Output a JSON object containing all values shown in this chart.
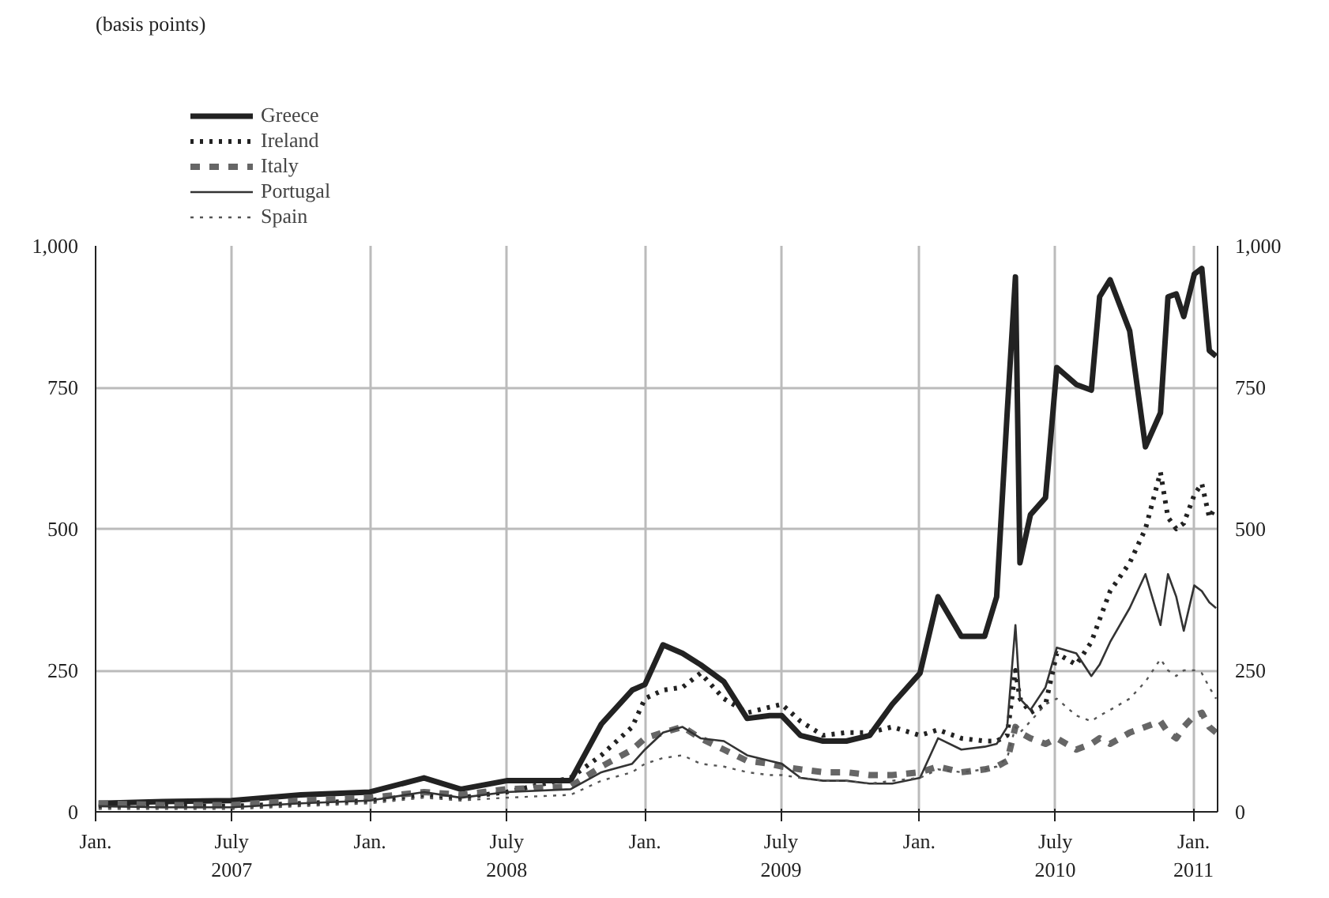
{
  "chart_data": {
    "type": "line",
    "annotations": [
      "(basis points)"
    ],
    "x": [
      "2007-01-05",
      "2007-04-01",
      "2007-07-01",
      "2007-10-01",
      "2008-01-01",
      "2008-03-13",
      "2008-05-01",
      "2008-07-01",
      "2008-09-24",
      "2008-11-04",
      "2008-12-15",
      "2009-01-01",
      "2009-01-25",
      "2009-02-20",
      "2009-03-16",
      "2009-04-16",
      "2009-05-17",
      "2009-06-16",
      "2009-07-02",
      "2009-07-27",
      "2009-08-26",
      "2009-09-26",
      "2009-10-27",
      "2009-11-26",
      "2010-01-02",
      "2010-01-26",
      "2010-02-26",
      "2010-03-29",
      "2010-04-14",
      "2010-04-28",
      "2010-05-09",
      "2010-05-15",
      "2010-05-29",
      "2010-06-18",
      "2010-07-03",
      "2010-07-29",
      "2010-08-18",
      "2010-08-29",
      "2010-09-12",
      "2010-10-08",
      "2010-10-29",
      "2010-11-18",
      "2010-11-28",
      "2010-12-09",
      "2010-12-19",
      "2011-01-02",
      "2011-01-12",
      "2011-01-22",
      "2011-01-31"
    ],
    "series": [
      {
        "name": "Greece",
        "color": "#222222",
        "line_style": "solid",
        "values": [
          15,
          18,
          20,
          30,
          35,
          60,
          40,
          55,
          55,
          155,
          215,
          225,
          295,
          280,
          260,
          230,
          165,
          170,
          170,
          135,
          125,
          125,
          135,
          190,
          245,
          380,
          310,
          310,
          380,
          705,
          945,
          440,
          525,
          555,
          785,
          755,
          745,
          910,
          940,
          850,
          645,
          705,
          910,
          915,
          875,
          950,
          960,
          815,
          805
        ]
      },
      {
        "name": "Ireland",
        "color": "#222222",
        "line_style": "dotted",
        "values": [
          10,
          10,
          10,
          15,
          20,
          30,
          25,
          35,
          60,
          100,
          150,
          200,
          215,
          220,
          245,
          200,
          175,
          185,
          190,
          160,
          135,
          140,
          140,
          150,
          135,
          145,
          130,
          125,
          125,
          135,
          250,
          200,
          175,
          190,
          280,
          260,
          300,
          340,
          390,
          440,
          500,
          600,
          520,
          500,
          510,
          560,
          580,
          520,
          540
        ]
      },
      {
        "name": "Italy",
        "color": "#666666",
        "line_style": "dashed",
        "values": [
          15,
          12,
          12,
          20,
          25,
          35,
          30,
          40,
          45,
          80,
          110,
          130,
          140,
          150,
          130,
          110,
          90,
          85,
          80,
          75,
          70,
          70,
          65,
          65,
          70,
          80,
          70,
          75,
          80,
          90,
          150,
          140,
          130,
          120,
          130,
          110,
          120,
          130,
          120,
          140,
          150,
          160,
          140,
          130,
          150,
          170,
          175,
          150,
          140
        ]
      },
      {
        "name": "Portugal",
        "color": "#333333",
        "line_style": "solid",
        "values": [
          10,
          8,
          8,
          15,
          20,
          35,
          25,
          35,
          40,
          70,
          85,
          110,
          140,
          150,
          130,
          125,
          100,
          90,
          85,
          60,
          55,
          55,
          50,
          50,
          60,
          130,
          110,
          115,
          120,
          150,
          330,
          200,
          180,
          220,
          290,
          280,
          240,
          260,
          300,
          360,
          420,
          330,
          420,
          380,
          320,
          400,
          390,
          370,
          360
        ]
      },
      {
        "name": "Spain",
        "color": "#555555",
        "line_style": "dotted",
        "values": [
          5,
          5,
          5,
          10,
          15,
          25,
          20,
          25,
          30,
          55,
          70,
          85,
          95,
          100,
          85,
          80,
          70,
          65,
          65,
          60,
          55,
          55,
          50,
          55,
          60,
          75,
          70,
          75,
          80,
          95,
          150,
          140,
          160,
          190,
          200,
          170,
          160,
          170,
          180,
          200,
          230,
          270,
          250,
          240,
          250,
          250,
          245,
          220,
          200
        ]
      }
    ],
    "xlim": [
      "2007-01-01",
      "2011-02-02"
    ],
    "xticks": [
      {
        "value": "2007-01-01",
        "label": "Jan."
      },
      {
        "value": "2007-07-01",
        "label": "July\n2007"
      },
      {
        "value": "2008-01-01",
        "label": "Jan."
      },
      {
        "value": "2008-07-01",
        "label": "July\n2008"
      },
      {
        "value": "2009-01-01",
        "label": "Jan."
      },
      {
        "value": "2009-07-01",
        "label": "July\n2009"
      },
      {
        "value": "2010-01-01",
        "label": "Jan."
      },
      {
        "value": "2010-07-01",
        "label": "July\n2010"
      },
      {
        "value": "2011-01-01",
        "label": "Jan.\n2011"
      }
    ],
    "ylim": [
      0,
      1000
    ],
    "yticks": [
      0,
      250,
      500,
      750,
      {
        "value": 1000,
        "label": "1,000"
      }
    ],
    "y2lim": [
      0,
      1000
    ],
    "y2ticks": [
      0,
      250,
      500,
      750,
      {
        "value": 1000,
        "label": "1,000"
      }
    ],
    "grid": true,
    "legend": "top left"
  }
}
